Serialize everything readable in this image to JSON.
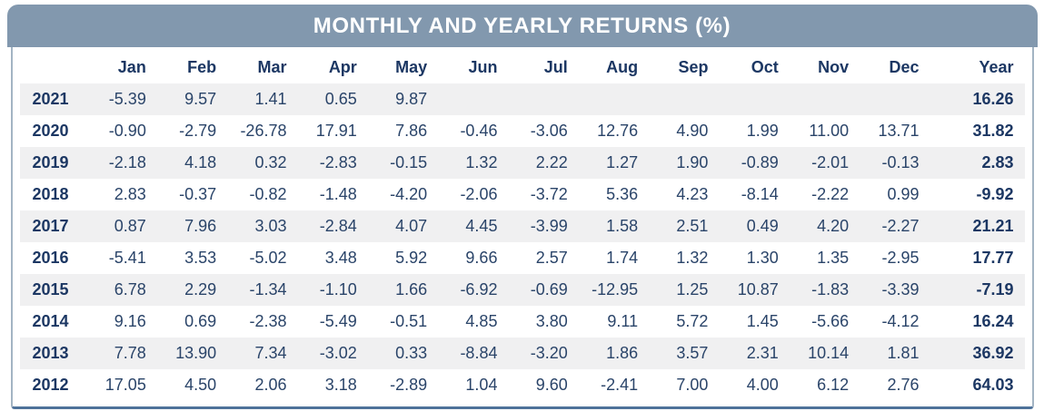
{
  "title": "MONTHLY AND YEARLY RETURNS (%)",
  "colors": {
    "banner_bg": "#8298ae",
    "banner_text": "#ffffff",
    "header_text": "#1c3763",
    "cell_text": "#2a4469",
    "stripe_bg": "#f0f0f1",
    "border_bottom": "#4e729a",
    "border_side": "#a3b4c3"
  },
  "table": {
    "columns": [
      "Jan",
      "Feb",
      "Mar",
      "Apr",
      "May",
      "Jun",
      "Jul",
      "Aug",
      "Sep",
      "Oct",
      "Nov",
      "Dec",
      "Year"
    ],
    "rows": [
      {
        "year": "2021",
        "values": [
          "-5.39",
          "9.57",
          "1.41",
          "0.65",
          "9.87",
          "",
          "",
          "",
          "",
          "",
          "",
          ""
        ],
        "year_total": "16.26"
      },
      {
        "year": "2020",
        "values": [
          "-0.90",
          "-2.79",
          "-26.78",
          "17.91",
          "7.86",
          "-0.46",
          "-3.06",
          "12.76",
          "4.90",
          "1.99",
          "11.00",
          "13.71"
        ],
        "year_total": "31.82"
      },
      {
        "year": "2019",
        "values": [
          "-2.18",
          "4.18",
          "0.32",
          "-2.83",
          "-0.15",
          "1.32",
          "2.22",
          "1.27",
          "1.90",
          "-0.89",
          "-2.01",
          "-0.13"
        ],
        "year_total": "2.83"
      },
      {
        "year": "2018",
        "values": [
          "2.83",
          "-0.37",
          "-0.82",
          "-1.48",
          "-4.20",
          "-2.06",
          "-3.72",
          "5.36",
          "4.23",
          "-8.14",
          "-2.22",
          "0.99"
        ],
        "year_total": "-9.92"
      },
      {
        "year": "2017",
        "values": [
          "0.87",
          "7.96",
          "3.03",
          "-2.84",
          "4.07",
          "4.45",
          "-3.99",
          "1.58",
          "2.51",
          "0.49",
          "4.20",
          "-2.27"
        ],
        "year_total": "21.21"
      },
      {
        "year": "2016",
        "values": [
          "-5.41",
          "3.53",
          "-5.02",
          "3.48",
          "5.92",
          "9.66",
          "2.57",
          "1.74",
          "1.32",
          "1.30",
          "1.35",
          "-2.95"
        ],
        "year_total": "17.77"
      },
      {
        "year": "2015",
        "values": [
          "6.78",
          "2.29",
          "-1.34",
          "-1.10",
          "1.66",
          "-6.92",
          "-0.69",
          "-12.95",
          "1.25",
          "10.87",
          "-1.83",
          "-3.39"
        ],
        "year_total": "-7.19"
      },
      {
        "year": "2014",
        "values": [
          "9.16",
          "0.69",
          "-2.38",
          "-5.49",
          "-0.51",
          "4.85",
          "3.80",
          "9.11",
          "5.72",
          "1.45",
          "-5.66",
          "-4.12"
        ],
        "year_total": "16.24"
      },
      {
        "year": "2013",
        "values": [
          "7.78",
          "13.90",
          "7.34",
          "-3.02",
          "0.33",
          "-8.84",
          "-3.20",
          "1.86",
          "3.57",
          "2.31",
          "10.14",
          "1.81"
        ],
        "year_total": "36.92"
      },
      {
        "year": "2012",
        "values": [
          "17.05",
          "4.50",
          "2.06",
          "3.18",
          "-2.89",
          "1.04",
          "9.60",
          "-2.41",
          "7.00",
          "4.00",
          "6.12",
          "2.76"
        ],
        "year_total": "64.03"
      }
    ]
  },
  "chart_data": {
    "type": "table",
    "title": "MONTHLY AND YEARLY RETURNS (%)",
    "columns": [
      "Jan",
      "Feb",
      "Mar",
      "Apr",
      "May",
      "Jun",
      "Jul",
      "Aug",
      "Sep",
      "Oct",
      "Nov",
      "Dec",
      "Year"
    ],
    "row_labels": [
      "2021",
      "2020",
      "2019",
      "2018",
      "2017",
      "2016",
      "2015",
      "2014",
      "2013",
      "2012"
    ],
    "series": [
      {
        "name": "2021",
        "values": [
          -5.39,
          9.57,
          1.41,
          0.65,
          9.87,
          null,
          null,
          null,
          null,
          null,
          null,
          null
        ],
        "year_total": 16.26
      },
      {
        "name": "2020",
        "values": [
          -0.9,
          -2.79,
          -26.78,
          17.91,
          7.86,
          -0.46,
          -3.06,
          12.76,
          4.9,
          1.99,
          11.0,
          13.71
        ],
        "year_total": 31.82
      },
      {
        "name": "2019",
        "values": [
          -2.18,
          4.18,
          0.32,
          -2.83,
          -0.15,
          1.32,
          2.22,
          1.27,
          1.9,
          -0.89,
          -2.01,
          -0.13
        ],
        "year_total": 2.83
      },
      {
        "name": "2018",
        "values": [
          2.83,
          -0.37,
          -0.82,
          -1.48,
          -4.2,
          -2.06,
          -3.72,
          5.36,
          4.23,
          -8.14,
          -2.22,
          0.99
        ],
        "year_total": -9.92
      },
      {
        "name": "2017",
        "values": [
          0.87,
          7.96,
          3.03,
          -2.84,
          4.07,
          4.45,
          -3.99,
          1.58,
          2.51,
          0.49,
          4.2,
          -2.27
        ],
        "year_total": 21.21
      },
      {
        "name": "2016",
        "values": [
          -5.41,
          3.53,
          -5.02,
          3.48,
          5.92,
          9.66,
          2.57,
          1.74,
          1.32,
          1.3,
          1.35,
          -2.95
        ],
        "year_total": 17.77
      },
      {
        "name": "2015",
        "values": [
          6.78,
          2.29,
          -1.34,
          -1.1,
          1.66,
          -6.92,
          -0.69,
          -12.95,
          1.25,
          10.87,
          -1.83,
          -3.39
        ],
        "year_total": -7.19
      },
      {
        "name": "2014",
        "values": [
          9.16,
          0.69,
          -2.38,
          -5.49,
          -0.51,
          4.85,
          3.8,
          9.11,
          5.72,
          1.45,
          -5.66,
          -4.12
        ],
        "year_total": 16.24
      },
      {
        "name": "2013",
        "values": [
          7.78,
          13.9,
          7.34,
          -3.02,
          0.33,
          -8.84,
          -3.2,
          1.86,
          3.57,
          2.31,
          10.14,
          1.81
        ],
        "year_total": 36.92
      },
      {
        "name": "2012",
        "values": [
          17.05,
          4.5,
          2.06,
          3.18,
          -2.89,
          1.04,
          9.6,
          -2.41,
          7.0,
          4.0,
          6.12,
          2.76
        ],
        "year_total": 64.03
      }
    ]
  }
}
